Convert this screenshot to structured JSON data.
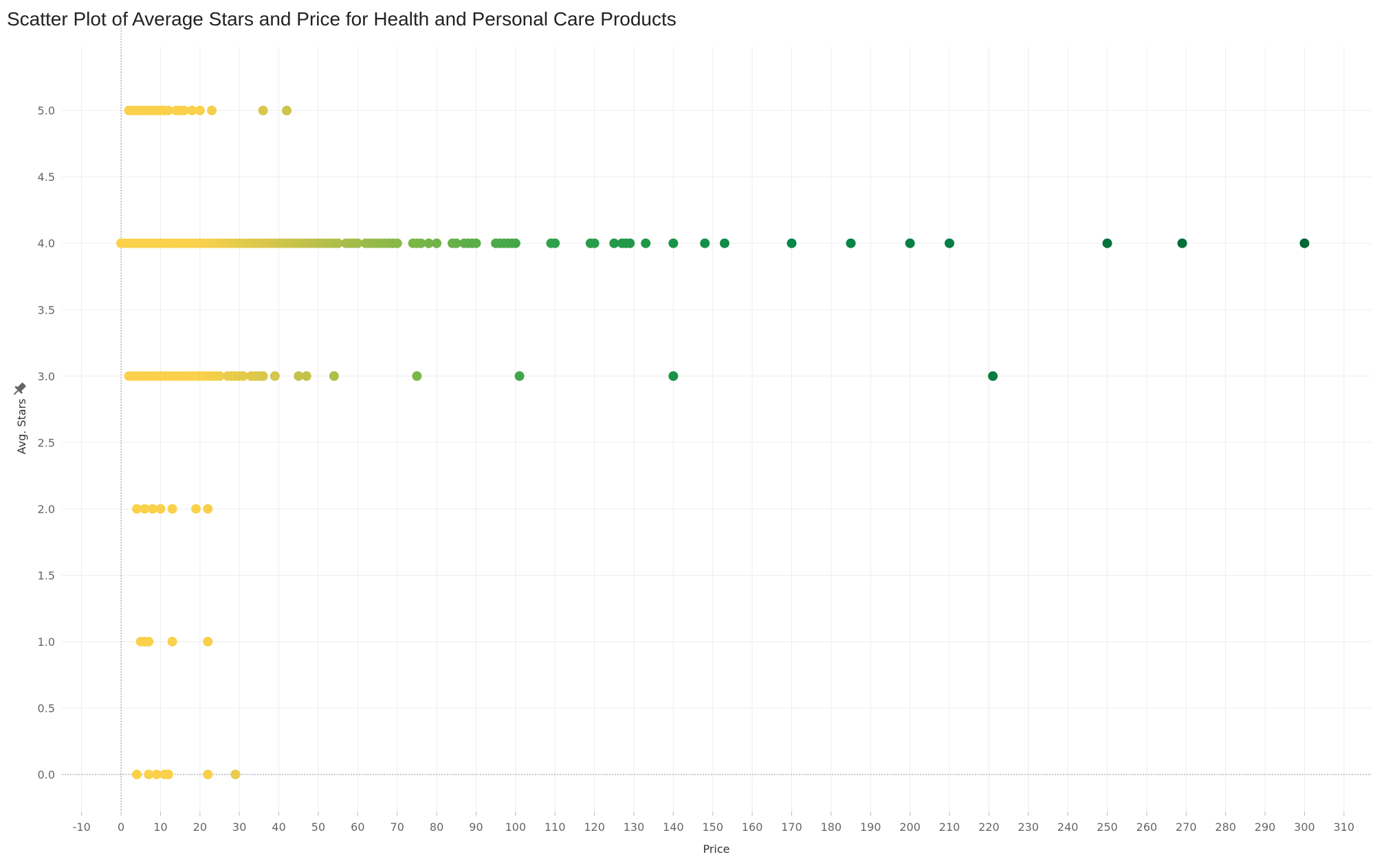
{
  "chart_data": {
    "type": "scatter",
    "title": "Scatter Plot of Average Stars and Price for Health and Personal Care Products",
    "xlabel": "Price",
    "ylabel": "Avg. Stars",
    "xlim": [
      -15,
      317
    ],
    "ylim": [
      -0.28,
      5.48
    ],
    "x_ticks": [
      -10,
      0,
      10,
      20,
      30,
      40,
      50,
      60,
      70,
      80,
      90,
      100,
      110,
      120,
      130,
      140,
      150,
      160,
      170,
      180,
      190,
      200,
      210,
      220,
      230,
      240,
      250,
      260,
      270,
      280,
      290,
      300,
      310
    ],
    "y_ticks": [
      0.0,
      0.5,
      1.0,
      1.5,
      2.0,
      2.5,
      3.0,
      3.5,
      4.0,
      4.5,
      5.0
    ],
    "grid": true,
    "color_by": "Price",
    "color_scale": [
      "#fbd14b",
      "#c7c24a",
      "#7ab648",
      "#2fa04a",
      "#0a8a48",
      "#006633"
    ],
    "points": [
      {
        "x": 2,
        "y": 5
      },
      {
        "x": 3,
        "y": 5
      },
      {
        "x": 4,
        "y": 5
      },
      {
        "x": 5,
        "y": 5
      },
      {
        "x": 6,
        "y": 5
      },
      {
        "x": 7,
        "y": 5
      },
      {
        "x": 8,
        "y": 5
      },
      {
        "x": 9,
        "y": 5
      },
      {
        "x": 10,
        "y": 5
      },
      {
        "x": 11,
        "y": 5
      },
      {
        "x": 12,
        "y": 5
      },
      {
        "x": 14,
        "y": 5
      },
      {
        "x": 15,
        "y": 5
      },
      {
        "x": 16,
        "y": 5
      },
      {
        "x": 18,
        "y": 5
      },
      {
        "x": 20,
        "y": 5
      },
      {
        "x": 23,
        "y": 5
      },
      {
        "x": 36,
        "y": 5
      },
      {
        "x": 42,
        "y": 5
      },
      {
        "x": 0,
        "y": 4
      },
      {
        "x": 1,
        "y": 4
      },
      {
        "x": 2,
        "y": 4
      },
      {
        "x": 3,
        "y": 4
      },
      {
        "x": 4,
        "y": 4
      },
      {
        "x": 5,
        "y": 4
      },
      {
        "x": 6,
        "y": 4
      },
      {
        "x": 7,
        "y": 4
      },
      {
        "x": 8,
        "y": 4
      },
      {
        "x": 9,
        "y": 4
      },
      {
        "x": 10,
        "y": 4
      },
      {
        "x": 11,
        "y": 4
      },
      {
        "x": 12,
        "y": 4
      },
      {
        "x": 13,
        "y": 4
      },
      {
        "x": 14,
        "y": 4
      },
      {
        "x": 15,
        "y": 4
      },
      {
        "x": 16,
        "y": 4
      },
      {
        "x": 17,
        "y": 4
      },
      {
        "x": 18,
        "y": 4
      },
      {
        "x": 19,
        "y": 4
      },
      {
        "x": 20,
        "y": 4
      },
      {
        "x": 21,
        "y": 4
      },
      {
        "x": 22,
        "y": 4
      },
      {
        "x": 23,
        "y": 4
      },
      {
        "x": 24,
        "y": 4
      },
      {
        "x": 25,
        "y": 4
      },
      {
        "x": 26,
        "y": 4
      },
      {
        "x": 27,
        "y": 4
      },
      {
        "x": 28,
        "y": 4
      },
      {
        "x": 29,
        "y": 4
      },
      {
        "x": 30,
        "y": 4
      },
      {
        "x": 31,
        "y": 4
      },
      {
        "x": 32,
        "y": 4
      },
      {
        "x": 33,
        "y": 4
      },
      {
        "x": 34,
        "y": 4
      },
      {
        "x": 35,
        "y": 4
      },
      {
        "x": 36,
        "y": 4
      },
      {
        "x": 37,
        "y": 4
      },
      {
        "x": 38,
        "y": 4
      },
      {
        "x": 39,
        "y": 4
      },
      {
        "x": 40,
        "y": 4
      },
      {
        "x": 41,
        "y": 4
      },
      {
        "x": 42,
        "y": 4
      },
      {
        "x": 43,
        "y": 4
      },
      {
        "x": 44,
        "y": 4
      },
      {
        "x": 45,
        "y": 4
      },
      {
        "x": 46,
        "y": 4
      },
      {
        "x": 47,
        "y": 4
      },
      {
        "x": 48,
        "y": 4
      },
      {
        "x": 49,
        "y": 4
      },
      {
        "x": 50,
        "y": 4
      },
      {
        "x": 51,
        "y": 4
      },
      {
        "x": 52,
        "y": 4
      },
      {
        "x": 53,
        "y": 4
      },
      {
        "x": 54,
        "y": 4
      },
      {
        "x": 55,
        "y": 4
      },
      {
        "x": 57,
        "y": 4
      },
      {
        "x": 58,
        "y": 4
      },
      {
        "x": 59,
        "y": 4
      },
      {
        "x": 60,
        "y": 4
      },
      {
        "x": 62,
        "y": 4
      },
      {
        "x": 63,
        "y": 4
      },
      {
        "x": 64,
        "y": 4
      },
      {
        "x": 65,
        "y": 4
      },
      {
        "x": 66,
        "y": 4
      },
      {
        "x": 67,
        "y": 4
      },
      {
        "x": 68,
        "y": 4
      },
      {
        "x": 69,
        "y": 4
      },
      {
        "x": 70,
        "y": 4
      },
      {
        "x": 74,
        "y": 4
      },
      {
        "x": 75,
        "y": 4
      },
      {
        "x": 76,
        "y": 4
      },
      {
        "x": 78,
        "y": 4
      },
      {
        "x": 80,
        "y": 4
      },
      {
        "x": 84,
        "y": 4
      },
      {
        "x": 85,
        "y": 4
      },
      {
        "x": 87,
        "y": 4
      },
      {
        "x": 88,
        "y": 4
      },
      {
        "x": 89,
        "y": 4
      },
      {
        "x": 90,
        "y": 4
      },
      {
        "x": 95,
        "y": 4
      },
      {
        "x": 96,
        "y": 4
      },
      {
        "x": 97,
        "y": 4
      },
      {
        "x": 98,
        "y": 4
      },
      {
        "x": 99,
        "y": 4
      },
      {
        "x": 100,
        "y": 4
      },
      {
        "x": 109,
        "y": 4
      },
      {
        "x": 110,
        "y": 4
      },
      {
        "x": 119,
        "y": 4
      },
      {
        "x": 120,
        "y": 4
      },
      {
        "x": 125,
        "y": 4
      },
      {
        "x": 127,
        "y": 4
      },
      {
        "x": 128,
        "y": 4
      },
      {
        "x": 129,
        "y": 4
      },
      {
        "x": 133,
        "y": 4
      },
      {
        "x": 140,
        "y": 4
      },
      {
        "x": 148,
        "y": 4
      },
      {
        "x": 153,
        "y": 4
      },
      {
        "x": 170,
        "y": 4
      },
      {
        "x": 185,
        "y": 4
      },
      {
        "x": 200,
        "y": 4
      },
      {
        "x": 210,
        "y": 4
      },
      {
        "x": 250,
        "y": 4
      },
      {
        "x": 269,
        "y": 4
      },
      {
        "x": 300,
        "y": 4
      },
      {
        "x": 2,
        "y": 3
      },
      {
        "x": 3,
        "y": 3
      },
      {
        "x": 4,
        "y": 3
      },
      {
        "x": 5,
        "y": 3
      },
      {
        "x": 6,
        "y": 3
      },
      {
        "x": 7,
        "y": 3
      },
      {
        "x": 8,
        "y": 3
      },
      {
        "x": 9,
        "y": 3
      },
      {
        "x": 10,
        "y": 3
      },
      {
        "x": 11,
        "y": 3
      },
      {
        "x": 12,
        "y": 3
      },
      {
        "x": 13,
        "y": 3
      },
      {
        "x": 14,
        "y": 3
      },
      {
        "x": 15,
        "y": 3
      },
      {
        "x": 16,
        "y": 3
      },
      {
        "x": 17,
        "y": 3
      },
      {
        "x": 18,
        "y": 3
      },
      {
        "x": 19,
        "y": 3
      },
      {
        "x": 20,
        "y": 3
      },
      {
        "x": 21,
        "y": 3
      },
      {
        "x": 22,
        "y": 3
      },
      {
        "x": 23,
        "y": 3
      },
      {
        "x": 24,
        "y": 3
      },
      {
        "x": 25,
        "y": 3
      },
      {
        "x": 27,
        "y": 3
      },
      {
        "x": 28,
        "y": 3
      },
      {
        "x": 29,
        "y": 3
      },
      {
        "x": 30,
        "y": 3
      },
      {
        "x": 31,
        "y": 3
      },
      {
        "x": 33,
        "y": 3
      },
      {
        "x": 34,
        "y": 3
      },
      {
        "x": 35,
        "y": 3
      },
      {
        "x": 36,
        "y": 3
      },
      {
        "x": 39,
        "y": 3
      },
      {
        "x": 45,
        "y": 3
      },
      {
        "x": 47,
        "y": 3
      },
      {
        "x": 54,
        "y": 3
      },
      {
        "x": 75,
        "y": 3
      },
      {
        "x": 101,
        "y": 3
      },
      {
        "x": 140,
        "y": 3
      },
      {
        "x": 221,
        "y": 3
      },
      {
        "x": 4,
        "y": 2
      },
      {
        "x": 6,
        "y": 2
      },
      {
        "x": 8,
        "y": 2
      },
      {
        "x": 10,
        "y": 2
      },
      {
        "x": 13,
        "y": 2
      },
      {
        "x": 19,
        "y": 2
      },
      {
        "x": 22,
        "y": 2
      },
      {
        "x": 5,
        "y": 1
      },
      {
        "x": 6,
        "y": 1
      },
      {
        "x": 7,
        "y": 1
      },
      {
        "x": 13,
        "y": 1
      },
      {
        "x": 22,
        "y": 1
      },
      {
        "x": 4,
        "y": 0
      },
      {
        "x": 7,
        "y": 0
      },
      {
        "x": 9,
        "y": 0
      },
      {
        "x": 11,
        "y": 0
      },
      {
        "x": 12,
        "y": 0
      },
      {
        "x": 22,
        "y": 0
      },
      {
        "x": 29,
        "y": 0
      }
    ]
  }
}
